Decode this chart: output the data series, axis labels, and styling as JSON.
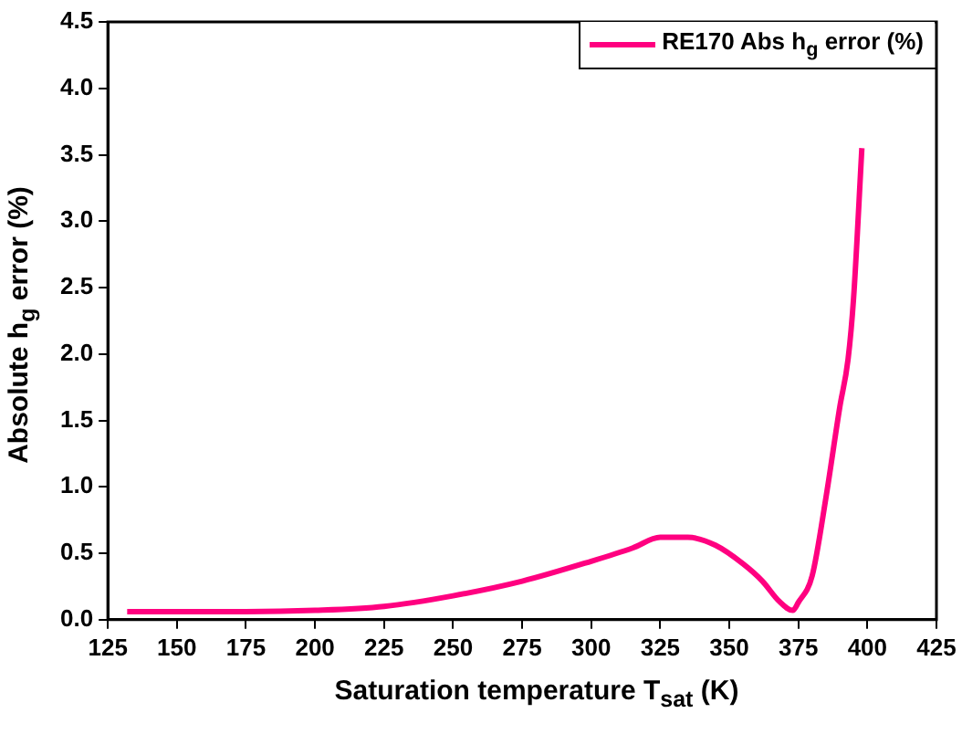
{
  "chart_data": {
    "type": "line",
    "xlabel": "Saturation temperature T$_{sat}$ (K)",
    "ylabel": "Absolute  h$_{g}$ error (%)",
    "x": [
      132,
      150,
      175,
      200,
      225,
      250,
      275,
      300,
      315,
      325,
      335,
      345,
      355,
      362,
      368,
      373,
      375,
      380,
      385,
      390,
      393,
      395,
      398
    ],
    "series": [
      {
        "name": "RE170 Abs h$_{g}$ error (%)",
        "color": "#ff0080",
        "values": [
          0.06,
          0.06,
          0.06,
          0.07,
          0.1,
          0.18,
          0.29,
          0.44,
          0.54,
          0.62,
          0.62,
          0.56,
          0.42,
          0.29,
          0.14,
          0.07,
          0.13,
          0.33,
          0.92,
          1.6,
          1.96,
          2.42,
          3.55
        ]
      }
    ],
    "xlim": [
      125,
      425
    ],
    "xticks": [
      125,
      150,
      175,
      200,
      225,
      250,
      275,
      300,
      325,
      350,
      375,
      400,
      425
    ],
    "ylim": [
      0,
      4.5
    ],
    "yticks": [
      {
        "value": 0,
        "label": "0.0"
      },
      0.5,
      {
        "value": 1,
        "label": "1.0"
      },
      1.5,
      {
        "value": 2,
        "label": "2.0"
      },
      2.5,
      {
        "value": 3,
        "label": "3.0"
      },
      3.5,
      {
        "value": 4,
        "label": "4.0"
      },
      4.5
    ],
    "grid": false,
    "legend": "top right",
    "marker": "none",
    "line_style": "solid"
  }
}
